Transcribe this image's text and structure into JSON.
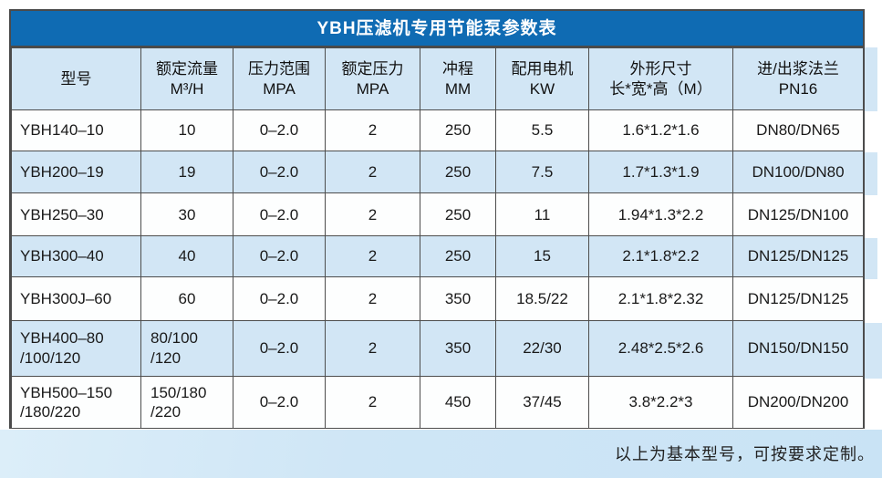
{
  "title": "YBH压滤机专用节能泵参数表",
  "footer_note": "以上为基本型号，可按要求定制。",
  "colors": {
    "title_bar_blue": "#0f6bb3",
    "stripe_light_blue": "#d2e6f5",
    "border_gray": "#4d4d4d",
    "text_dark": "#1a1a1a",
    "footer_strip_blue": "#cfe6f6"
  },
  "table": {
    "headers": [
      "型号",
      "额定流量\nM³/H",
      "压力范围\nMPA",
      "额定压力\nMPA",
      "冲程\nMM",
      "配用电机\nKW",
      "外形尺寸\n长*宽*高（M）",
      "进/出浆法兰\nPN16"
    ],
    "rows": [
      [
        "YBH140–10",
        "10",
        "0–2.0",
        "2",
        "250",
        "5.5",
        "1.6*1.2*1.6",
        "DN80/DN65"
      ],
      [
        "YBH200–19",
        "19",
        "0–2.0",
        "2",
        "250",
        "7.5",
        "1.7*1.3*1.9",
        "DN100/DN80"
      ],
      [
        "YBH250–30",
        "30",
        "0–2.0",
        "2",
        "250",
        "11",
        "1.94*1.3*2.2",
        "DN125/DN100"
      ],
      [
        "YBH300–40",
        "40",
        "0–2.0",
        "2",
        "250",
        "15",
        "2.1*1.8*2.2",
        "DN125/DN125"
      ],
      [
        "YBH300J–60",
        "60",
        "0–2.0",
        "2",
        "350",
        "18.5/22",
        "2.1*1.8*2.32",
        "DN125/DN125"
      ],
      [
        "YBH400–80\n/100/120",
        "80/100\n/120",
        "0–2.0",
        "2",
        "350",
        "22/30",
        "2.48*2.5*2.6",
        "DN150/DN150"
      ],
      [
        "YBH500–150\n/180/220",
        "150/180\n/220",
        "0–2.0",
        "2",
        "450",
        "37/45",
        "3.8*2.2*3",
        "DN200/DN200"
      ]
    ]
  }
}
